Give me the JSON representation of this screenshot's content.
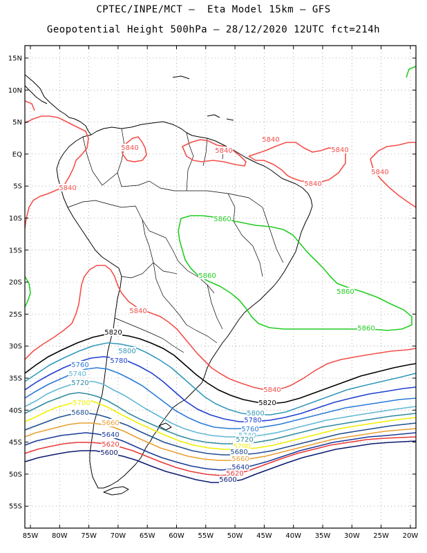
{
  "title_line1": "CPTEC/INPE/MCT –  Eta Model 15km – GFS",
  "title_line2": "Geopotential Height 500hPa – 28/12/2020 12UTC fct=214h",
  "lat_labels": [
    "15N",
    "10N",
    "5N",
    "EQ",
    "5S",
    "10S",
    "15S",
    "20S",
    "25S",
    "30S",
    "35S",
    "40S",
    "45S",
    "50S",
    "55S"
  ],
  "lon_labels": [
    "85W",
    "80W",
    "75W",
    "70W",
    "65W",
    "60W",
    "55W",
    "50W",
    "45W",
    "40W",
    "35W",
    "30W",
    "25W",
    "20W"
  ],
  "colors": {
    "c5840": "#f24f4a",
    "c5860": "#22cc22",
    "c5820": "#000000",
    "c5800": "#3399bb",
    "c5780": "#1f3fcf",
    "c5760": "#2a7ad6",
    "c5740": "#5fb7d4",
    "c5720": "#2f8aa0",
    "c5700": "#f0f000",
    "c5680": "#1f4f90",
    "c5660": "#e8a030",
    "c5640": "#1a3a9a",
    "c5620": "#e83838",
    "c5600": "#0a1a70"
  },
  "contour_labels": [
    {
      "text": "5840",
      "color": "c5840"
    },
    {
      "text": "5840",
      "color": "c5840"
    },
    {
      "text": "5840",
      "color": "c5840"
    },
    {
      "text": "5840",
      "color": "c5840"
    },
    {
      "text": "5840",
      "color": "c5840"
    },
    {
      "text": "5840",
      "color": "c5840"
    },
    {
      "text": "5840",
      "color": "c5840"
    },
    {
      "text": "5840",
      "color": "c5840"
    },
    {
      "text": "5840",
      "color": "c5840"
    },
    {
      "text": "5860",
      "color": "c5860"
    },
    {
      "text": "5860",
      "color": "c5860"
    },
    {
      "text": "5860",
      "color": "c5860"
    },
    {
      "text": "5860",
      "color": "c5860"
    },
    {
      "text": "5820",
      "color": "c5820"
    },
    {
      "text": "5820",
      "color": "c5820"
    },
    {
      "text": "5800",
      "color": "c5800"
    },
    {
      "text": "5800",
      "color": "c5800"
    },
    {
      "text": "5780",
      "color": "c5780"
    },
    {
      "text": "5780",
      "color": "c5780"
    },
    {
      "text": "5760",
      "color": "c5760"
    },
    {
      "text": "5760",
      "color": "c5760"
    },
    {
      "text": "5740",
      "color": "c5740"
    },
    {
      "text": "5740",
      "color": "c5740"
    },
    {
      "text": "5720",
      "color": "c5720"
    },
    {
      "text": "5720",
      "color": "c5720"
    },
    {
      "text": "5700",
      "color": "c5700"
    },
    {
      "text": "5700",
      "color": "c5700"
    },
    {
      "text": "5680",
      "color": "c5680"
    },
    {
      "text": "5680",
      "color": "c5680"
    },
    {
      "text": "5660",
      "color": "c5660"
    },
    {
      "text": "5660",
      "color": "c5660"
    },
    {
      "text": "5640",
      "color": "c5640"
    },
    {
      "text": "5640",
      "color": "c5640"
    },
    {
      "text": "5620",
      "color": "c5620"
    },
    {
      "text": "5620",
      "color": "c5620"
    },
    {
      "text": "5600",
      "color": "c5600"
    },
    {
      "text": "5600",
      "color": "c5600"
    }
  ]
}
